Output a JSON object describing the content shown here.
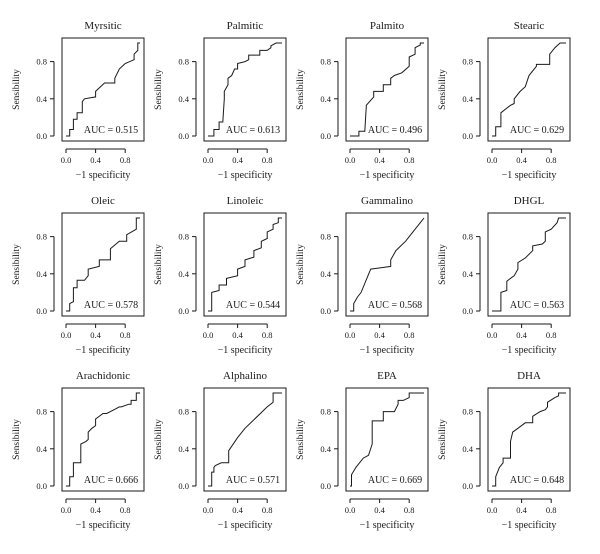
{
  "figure": {
    "chart_data": [
      {
        "type": "line",
        "title": "Myrsitic",
        "xlabel": "−1 specificity",
        "ylabel": "Sensibility",
        "annotation": "AUC = 0.515",
        "xlim": [
          0,
          1
        ],
        "ylim": [
          0,
          1
        ],
        "x_ticks": [
          "0.0",
          "0.4",
          "0.8"
        ],
        "y_ticks": [
          "0.0",
          "0.4",
          "0.8"
        ],
        "series": [
          {
            "x": [
              0,
              0.05,
              0.05,
              0.1,
              0.1,
              0.15,
              0.15,
              0.22,
              0.22,
              0.25,
              0.4,
              0.4,
              0.52,
              0.66,
              0.66,
              0.72,
              0.8,
              0.92,
              0.92,
              0.97,
              0.97,
              1
            ],
            "y": [
              0,
              0,
              0.07,
              0.07,
              0.18,
              0.18,
              0.25,
              0.25,
              0.37,
              0.4,
              0.42,
              0.48,
              0.57,
              0.57,
              0.62,
              0.72,
              0.78,
              0.82,
              0.88,
              0.92,
              1,
              1
            ]
          }
        ]
      },
      {
        "type": "line",
        "title": "Palmitic",
        "xlabel": "−1 specificity",
        "ylabel": "Sensibility",
        "annotation": "AUC = 0.613",
        "xlim": [
          0,
          1
        ],
        "ylim": [
          0,
          1
        ],
        "x_ticks": [
          "0.0",
          "0.4",
          "0.8"
        ],
        "y_ticks": [
          "0.0",
          "0.4",
          "0.8"
        ],
        "series": [
          {
            "x": [
              0,
              0.08,
              0.08,
              0.15,
              0.15,
              0.2,
              0.22,
              0.22,
              0.27,
              0.27,
              0.32,
              0.36,
              0.4,
              0.4,
              0.5,
              0.55,
              0.55,
              0.7,
              0.7,
              0.8,
              0.85,
              0.85,
              0.92,
              1
            ],
            "y": [
              0,
              0,
              0.07,
              0.07,
              0.15,
              0.15,
              0.4,
              0.48,
              0.55,
              0.62,
              0.65,
              0.72,
              0.72,
              0.78,
              0.8,
              0.82,
              0.87,
              0.87,
              0.92,
              0.92,
              0.95,
              0.97,
              1,
              1
            ]
          }
        ]
      },
      {
        "type": "line",
        "title": "Palmito",
        "xlabel": "−1 specificity",
        "ylabel": "Sensibility",
        "annotation": "AUC = 0.496",
        "xlim": [
          0,
          1
        ],
        "ylim": [
          0,
          1
        ],
        "x_ticks": [
          "0.0",
          "0.4",
          "0.8"
        ],
        "y_ticks": [
          "0.0",
          "0.4",
          "0.8"
        ],
        "series": [
          {
            "x": [
              0,
              0.12,
              0.12,
              0.2,
              0.22,
              0.22,
              0.32,
              0.32,
              0.45,
              0.45,
              0.55,
              0.55,
              0.6,
              0.7,
              0.8,
              0.8,
              0.88,
              0.88,
              0.95,
              0.95,
              1
            ],
            "y": [
              0,
              0,
              0.05,
              0.05,
              0.32,
              0.33,
              0.42,
              0.48,
              0.48,
              0.55,
              0.55,
              0.62,
              0.65,
              0.68,
              0.75,
              0.85,
              0.88,
              0.95,
              0.98,
              1,
              1
            ]
          }
        ]
      },
      {
        "type": "line",
        "title": "Stearic",
        "xlabel": "−1 specificity",
        "ylabel": "Sensibility",
        "annotation": "AUC = 0.629",
        "xlim": [
          0,
          1
        ],
        "ylim": [
          0,
          1
        ],
        "x_ticks": [
          "0.0",
          "0.4",
          "0.8"
        ],
        "y_ticks": [
          "0.0",
          "0.4",
          "0.8"
        ],
        "series": [
          {
            "x": [
              0,
              0.05,
              0.05,
              0.12,
              0.12,
              0.2,
              0.25,
              0.3,
              0.3,
              0.38,
              0.45,
              0.5,
              0.6,
              0.6,
              0.72,
              0.78,
              0.78,
              0.85,
              0.92,
              1
            ],
            "y": [
              0,
              0,
              0.1,
              0.1,
              0.25,
              0.3,
              0.33,
              0.35,
              0.4,
              0.48,
              0.53,
              0.65,
              0.75,
              0.77,
              0.77,
              0.77,
              0.88,
              0.95,
              1,
              1
            ]
          }
        ]
      },
      {
        "type": "line",
        "title": "Oleic",
        "xlabel": "−1 specificity",
        "ylabel": "Sensibility",
        "annotation": "AUC = 0.578",
        "xlim": [
          0,
          1
        ],
        "ylim": [
          0,
          1
        ],
        "x_ticks": [
          "0.0",
          "0.4",
          "0.8"
        ],
        "y_ticks": [
          "0.0",
          "0.4",
          "0.8"
        ],
        "series": [
          {
            "x": [
              0,
              0.05,
              0.05,
              0.1,
              0.1,
              0.15,
              0.15,
              0.25,
              0.3,
              0.3,
              0.45,
              0.45,
              0.6,
              0.6,
              0.72,
              0.82,
              0.82,
              0.95,
              0.95,
              1
            ],
            "y": [
              0,
              0,
              0.08,
              0.1,
              0.25,
              0.25,
              0.33,
              0.33,
              0.38,
              0.45,
              0.48,
              0.55,
              0.55,
              0.67,
              0.75,
              0.75,
              0.82,
              0.88,
              1,
              1
            ]
          }
        ]
      },
      {
        "type": "line",
        "title": "Linoleic",
        "xlabel": "−1 specificity",
        "ylabel": "Sensibility",
        "annotation": "AUC = 0.544",
        "xlim": [
          0,
          1
        ],
        "ylim": [
          0,
          1
        ],
        "x_ticks": [
          "0.0",
          "0.4",
          "0.8"
        ],
        "y_ticks": [
          "0.0",
          "0.4",
          "0.8"
        ],
        "series": [
          {
            "x": [
              0,
              0.05,
              0.05,
              0.15,
              0.15,
              0.25,
              0.25,
              0.4,
              0.4,
              0.5,
              0.5,
              0.62,
              0.62,
              0.72,
              0.72,
              0.8,
              0.8,
              0.88,
              0.88,
              0.95,
              0.95,
              1
            ],
            "y": [
              0,
              0,
              0.2,
              0.22,
              0.28,
              0.28,
              0.35,
              0.38,
              0.45,
              0.48,
              0.55,
              0.58,
              0.65,
              0.68,
              0.75,
              0.78,
              0.85,
              0.88,
              0.93,
              0.95,
              1,
              1
            ]
          }
        ]
      },
      {
        "type": "line",
        "title": "Gammalino",
        "xlabel": "−1 specificity",
        "ylabel": "Sensibility",
        "annotation": "AUC = 0.568",
        "xlim": [
          0,
          1
        ],
        "ylim": [
          0,
          1
        ],
        "x_ticks": [
          "0.0",
          "0.4",
          "0.8"
        ],
        "y_ticks": [
          "0.0",
          "0.4",
          "0.8"
        ],
        "series": [
          {
            "x": [
              0,
              0.05,
              0.05,
              0.1,
              0.15,
              0.28,
              0.55,
              0.55,
              0.62,
              0.75,
              0.88,
              0.95,
              1
            ],
            "y": [
              0,
              0,
              0.08,
              0.15,
              0.2,
              0.45,
              0.48,
              0.55,
              0.65,
              0.75,
              0.88,
              0.95,
              1
            ]
          }
        ]
      },
      {
        "type": "line",
        "title": "DHGL",
        "xlabel": "−1 specificity",
        "ylabel": "Sensibility",
        "annotation": "AUC = 0.563",
        "xlim": [
          0,
          1
        ],
        "ylim": [
          0,
          1
        ],
        "x_ticks": [
          "0.0",
          "0.4",
          "0.8"
        ],
        "y_ticks": [
          "0.0",
          "0.4",
          "0.8"
        ],
        "series": [
          {
            "x": [
              0,
              0.12,
              0.12,
              0.2,
              0.2,
              0.3,
              0.35,
              0.35,
              0.45,
              0.55,
              0.55,
              0.68,
              0.72,
              0.72,
              0.8,
              0.88,
              0.9,
              1
            ],
            "y": [
              0,
              0,
              0.2,
              0.22,
              0.32,
              0.38,
              0.45,
              0.52,
              0.57,
              0.65,
              0.7,
              0.72,
              0.75,
              0.85,
              0.88,
              0.95,
              1,
              1
            ]
          }
        ]
      },
      {
        "type": "line",
        "title": "Arachidonic",
        "xlabel": "−1 specificity",
        "ylabel": "Sensibility",
        "annotation": "AUC = 0.666",
        "xlim": [
          0,
          1
        ],
        "ylim": [
          0,
          1
        ],
        "x_ticks": [
          "0.0",
          "0.4",
          "0.8"
        ],
        "y_ticks": [
          "0.0",
          "0.4",
          "0.8"
        ],
        "series": [
          {
            "x": [
              0,
              0.05,
              0.05,
              0.1,
              0.1,
              0.2,
              0.2,
              0.27,
              0.3,
              0.3,
              0.35,
              0.4,
              0.4,
              0.5,
              0.55,
              0.65,
              0.72,
              0.75,
              0.85,
              0.88,
              0.88,
              0.95,
              0.95,
              1
            ],
            "y": [
              0,
              0,
              0.1,
              0.1,
              0.25,
              0.25,
              0.45,
              0.48,
              0.5,
              0.58,
              0.62,
              0.65,
              0.72,
              0.78,
              0.78,
              0.82,
              0.85,
              0.85,
              0.88,
              0.88,
              0.92,
              0.92,
              1,
              1
            ]
          }
        ]
      },
      {
        "type": "line",
        "title": "Alphalino",
        "xlabel": "−1 specificity",
        "ylabel": "Sensibility",
        "annotation": "AUC = 0.571",
        "xlim": [
          0,
          1
        ],
        "ylim": [
          0,
          1
        ],
        "x_ticks": [
          "0.0",
          "0.4",
          "0.8"
        ],
        "y_ticks": [
          "0.0",
          "0.4",
          "0.8"
        ],
        "series": [
          {
            "x": [
              0,
              0.05,
              0.05,
              0.08,
              0.08,
              0.1,
              0.18,
              0.28,
              0.28,
              0.4,
              0.5,
              0.8,
              0.88,
              0.88,
              1
            ],
            "y": [
              0,
              0,
              0.15,
              0.15,
              0.2,
              0.22,
              0.25,
              0.25,
              0.38,
              0.52,
              0.62,
              0.85,
              0.9,
              1,
              1
            ]
          }
        ]
      },
      {
        "type": "line",
        "title": "EPA",
        "xlabel": "−1 specificity",
        "ylabel": "Sensibility",
        "annotation": "AUC = 0.669",
        "xlim": [
          0,
          1
        ],
        "ylim": [
          0,
          1
        ],
        "x_ticks": [
          "0.0",
          "0.4",
          "0.8"
        ],
        "y_ticks": [
          "0.0",
          "0.4",
          "0.8"
        ],
        "series": [
          {
            "x": [
              0,
              0.02,
              0.02,
              0.08,
              0.18,
              0.25,
              0.3,
              0.3,
              0.45,
              0.45,
              0.6,
              0.65,
              0.65,
              0.72,
              0.8,
              0.8,
              1
            ],
            "y": [
              0,
              0,
              0.12,
              0.2,
              0.3,
              0.33,
              0.45,
              0.7,
              0.7,
              0.8,
              0.8,
              0.88,
              0.92,
              0.92,
              0.95,
              1,
              1
            ]
          }
        ]
      },
      {
        "type": "line",
        "title": "DHA",
        "xlabel": "−1 specificity",
        "ylabel": "Sensibility",
        "annotation": "AUC = 0.648",
        "xlim": [
          0,
          1
        ],
        "ylim": [
          0,
          1
        ],
        "x_ticks": [
          "0.0",
          "0.4",
          "0.8"
        ],
        "y_ticks": [
          "0.0",
          "0.4",
          "0.8"
        ],
        "series": [
          {
            "x": [
              0,
              0.05,
              0.05,
              0.1,
              0.15,
              0.15,
              0.25,
              0.25,
              0.28,
              0.35,
              0.45,
              0.55,
              0.55,
              0.65,
              0.72,
              0.75,
              0.75,
              0.85,
              0.9,
              0.9,
              1
            ],
            "y": [
              0,
              0,
              0.1,
              0.2,
              0.25,
              0.3,
              0.3,
              0.48,
              0.58,
              0.62,
              0.68,
              0.68,
              0.75,
              0.8,
              0.82,
              0.85,
              0.9,
              0.95,
              0.97,
              1,
              1
            ]
          }
        ]
      }
    ]
  }
}
